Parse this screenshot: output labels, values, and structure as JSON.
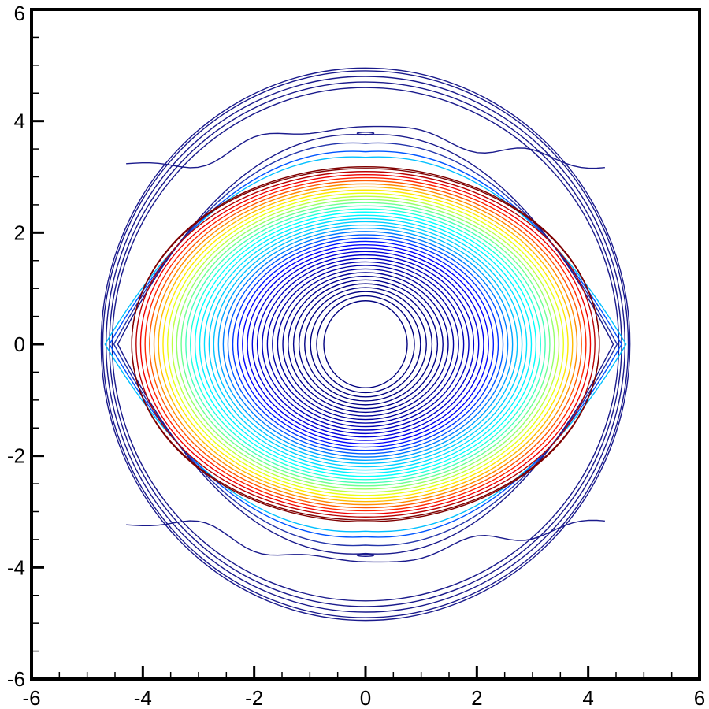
{
  "chart_data": {
    "type": "contour",
    "title": "",
    "xlabel": "",
    "ylabel": "",
    "xlim": [
      -6,
      6
    ],
    "ylim": [
      -6,
      6
    ],
    "x_ticks": [
      -6,
      -4,
      -2,
      0,
      2,
      4,
      6
    ],
    "y_ticks": [
      -6,
      -4,
      -2,
      0,
      2,
      4,
      6
    ],
    "x_tick_labels": [
      "-6",
      "-4",
      "-2",
      "0",
      "2",
      "4",
      "6"
    ],
    "y_tick_labels": [
      "-6",
      "-4",
      "-2",
      "0",
      "2",
      "4",
      "6"
    ],
    "minor_tick_step": 0.5,
    "grid": false,
    "legend": "none",
    "colormap": [
      "#00007f",
      "#0000ff",
      "#00bfff",
      "#00ffff",
      "#7fff7f",
      "#ffff00",
      "#ff7f00",
      "#ff0000",
      "#7f0000"
    ],
    "outer_boundary": {
      "center": [
        0,
        0
      ],
      "rx": 4.75,
      "ry": 4.95,
      "color": "#1a1a8c"
    },
    "inner_ellipse": {
      "center": [
        0,
        0
      ],
      "rx": 4.2,
      "ry": 3.18
    },
    "central_contours": {
      "count": 40,
      "rx_min": 0.75,
      "ry_min": 0.78,
      "rx_max": 4.2,
      "ry_max": 3.15
    },
    "outer_bands": [
      {
        "rx": 4.72,
        "ry": 4.9,
        "color": "#1a1a8c"
      },
      {
        "rx": 4.66,
        "ry": 4.8,
        "color": "#1a1a8c"
      },
      {
        "rx": 4.6,
        "ry": 4.7,
        "color": "#1a1a8c"
      },
      {
        "rx": 4.55,
        "ry": 4.6,
        "color": "#1a1a8c"
      }
    ],
    "cusp_lines": [
      {
        "rx": 4.68,
        "ry": 3.35,
        "color": "#00bfff"
      },
      {
        "rx": 4.6,
        "ry": 3.45,
        "color": "#0055ff"
      },
      {
        "rx": 4.52,
        "ry": 3.6,
        "color": "#2233aa"
      },
      {
        "rx": 4.45,
        "ry": 3.75,
        "color": "#1a1a8c"
      }
    ],
    "small_features": [
      {
        "x": 0,
        "y": 3.78,
        "rx": 0.15,
        "ry": 0.02
      },
      {
        "x": 0,
        "y": -3.78,
        "rx": 0.15,
        "ry": 0.02
      }
    ]
  }
}
